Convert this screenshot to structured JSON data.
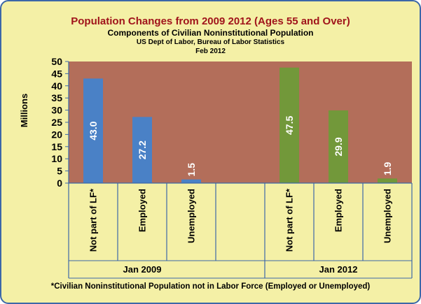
{
  "header": {
    "title": "Population Changes  from 2009 2012 (Ages 55 and Over)",
    "subtitle": "Components of Civilian Noninstitutional Population",
    "source": "US Dept of Labor, Bureau of Labor Statistics",
    "date": "Feb 2012"
  },
  "footnote": "*Civilian Noninstitutional Population not in Labor Force (Employed or Unemployed)",
  "colors": {
    "plot_background": "#b36e5a",
    "jan_2009": "#4a81c6",
    "jan_2012": "#72983a",
    "frame": "#f4f0a6"
  },
  "chart_data": {
    "type": "bar",
    "ylabel": "Millions",
    "ylim": [
      0,
      50
    ],
    "yticks": [
      0,
      5,
      10,
      15,
      20,
      25,
      30,
      35,
      40,
      45,
      50
    ],
    "grid": false,
    "groups": [
      "Jan 2009",
      "Jan 2012"
    ],
    "categories": [
      "Not part of LF*",
      "Employed",
      "Unemployed",
      "",
      "Not part of LF*",
      "Employed",
      "Unemployed"
    ],
    "category_group": [
      0,
      0,
      0,
      null,
      1,
      1,
      1
    ],
    "values": [
      43.0,
      27.2,
      1.5,
      null,
      47.5,
      29.9,
      1.9
    ],
    "data_labels": [
      "43.0",
      "27.2",
      "1.5",
      "",
      "47.5",
      "29.9",
      "1.9"
    ]
  }
}
